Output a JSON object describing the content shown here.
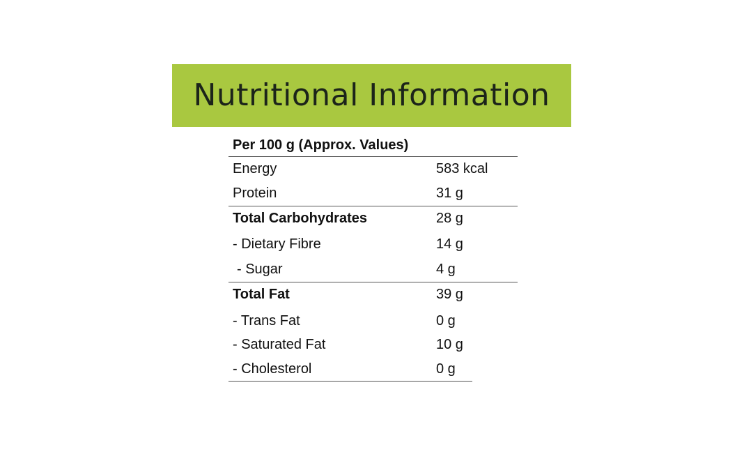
{
  "header": {
    "title": "Nutritional Information"
  },
  "table": {
    "heading": "Per 100 g (Approx. Values)",
    "rows": [
      [
        "Energy",
        "583 kcal"
      ],
      [
        "Protein",
        "31 g"
      ],
      [
        "Total Carbohydrates",
        "28 g"
      ],
      [
        "- Dietary Fibre",
        "14 g"
      ],
      [
        "- Sugar",
        "4 g"
      ],
      [
        "Total Fat",
        "39 g"
      ],
      [
        "- Trans Fat",
        "0 g"
      ],
      [
        "- Saturated Fat",
        "10 g"
      ],
      [
        "- Cholesterol",
        "0 g"
      ]
    ]
  }
}
